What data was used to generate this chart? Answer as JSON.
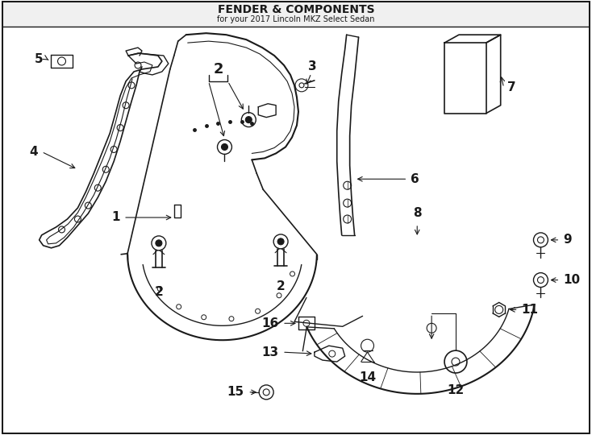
{
  "title": "FENDER & COMPONENTS",
  "subtitle": "for your 2017 Lincoln MKZ Select Sedan",
  "bg_color": "#ffffff",
  "line_color": "#1a1a1a",
  "fig_width": 7.34,
  "fig_height": 5.4,
  "dpi": 100
}
